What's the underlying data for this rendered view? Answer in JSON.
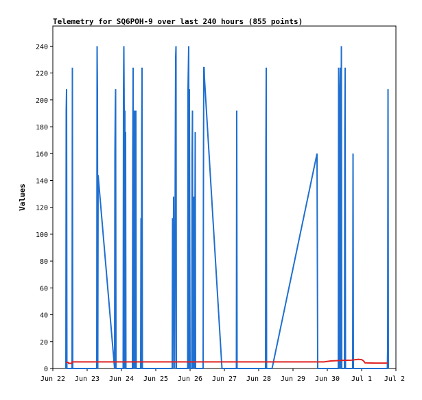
{
  "chart_data": {
    "type": "line",
    "title": "Telemetry for SQ6POH-9 over last 240 hours (855 points)",
    "xlabel": "",
    "ylabel": "Values",
    "x_tick_labels": [
      "Jun 22",
      "Jun 23",
      "Jun 24",
      "Jun 25",
      "Jun 26",
      "Jun 27",
      "Jun 28",
      "Jun 29",
      "Jun 30",
      "Jul 1",
      "Jul 2"
    ],
    "x_range_days": [
      0,
      10
    ],
    "ylim": [
      0,
      255
    ],
    "y_ticks": [
      0,
      20,
      40,
      60,
      80,
      100,
      120,
      140,
      160,
      180,
      200,
      220,
      240
    ],
    "grid": false,
    "colors": {
      "series_blue": "#1f6fd0",
      "series_red": "#e02020",
      "frame": "#000000"
    },
    "series": [
      {
        "color": "#1f6fd0",
        "points": [
          [
            0.38,
            0
          ],
          [
            0.39,
            192
          ],
          [
            0.4,
            208
          ],
          [
            0.41,
            0
          ],
          [
            0.56,
            0
          ],
          [
            0.57,
            224
          ],
          [
            0.58,
            0
          ],
          [
            1.28,
            0
          ],
          [
            1.29,
            240
          ],
          [
            1.3,
            208
          ],
          [
            1.31,
            0
          ],
          [
            1.32,
            144
          ],
          [
            1.8,
            0
          ],
          [
            1.81,
            160
          ],
          [
            1.82,
            192
          ],
          [
            1.83,
            208
          ],
          [
            1.84,
            0
          ],
          [
            2.05,
            0
          ],
          [
            2.06,
            208
          ],
          [
            2.07,
            240
          ],
          [
            2.08,
            192
          ],
          [
            2.09,
            0
          ],
          [
            2.1,
            192
          ],
          [
            2.11,
            0
          ],
          [
            2.12,
            176
          ],
          [
            2.13,
            0
          ],
          [
            2.32,
            0
          ],
          [
            2.33,
            160
          ],
          [
            2.34,
            224
          ],
          [
            2.35,
            0
          ],
          [
            2.37,
            128
          ],
          [
            2.38,
            192
          ],
          [
            2.39,
            0
          ],
          [
            2.42,
            192
          ],
          [
            2.43,
            0
          ],
          [
            2.56,
            0
          ],
          [
            2.57,
            112
          ],
          [
            2.58,
            0
          ],
          [
            2.59,
            176
          ],
          [
            2.6,
            224
          ],
          [
            2.61,
            0
          ],
          [
            3.48,
            0
          ],
          [
            3.49,
            112
          ],
          [
            3.5,
            0
          ],
          [
            3.52,
            128
          ],
          [
            3.53,
            48
          ],
          [
            3.54,
            56
          ],
          [
            3.55,
            0
          ],
          [
            3.57,
            168
          ],
          [
            3.58,
            232
          ],
          [
            3.59,
            240
          ],
          [
            3.6,
            0
          ],
          [
            3.93,
            0
          ],
          [
            3.94,
            208
          ],
          [
            3.95,
            224
          ],
          [
            3.96,
            240
          ],
          [
            3.97,
            0
          ],
          [
            3.98,
            208
          ],
          [
            3.99,
            96
          ],
          [
            4.0,
            0
          ],
          [
            4.05,
            0
          ],
          [
            4.06,
            160
          ],
          [
            4.07,
            192
          ],
          [
            4.08,
            0
          ],
          [
            4.1,
            128
          ],
          [
            4.11,
            0
          ],
          [
            4.12,
            128
          ],
          [
            4.13,
            0
          ],
          [
            4.15,
            176
          ],
          [
            4.16,
            0
          ],
          [
            4.38,
            0
          ],
          [
            4.39,
            144
          ],
          [
            4.4,
            224
          ],
          [
            4.41,
            224
          ],
          [
            4.42,
            216
          ],
          [
            4.93,
            0
          ],
          [
            5.35,
            0
          ],
          [
            5.36,
            192
          ],
          [
            5.37,
            0
          ],
          [
            6.2,
            0
          ],
          [
            6.21,
            160
          ],
          [
            6.22,
            224
          ],
          [
            6.23,
            0
          ],
          [
            6.38,
            0
          ],
          [
            6.39,
            0
          ],
          [
            7.7,
            160
          ],
          [
            7.71,
            80
          ],
          [
            7.72,
            0
          ],
          [
            8.32,
            0
          ],
          [
            8.33,
            224
          ],
          [
            8.34,
            208
          ],
          [
            8.35,
            0
          ],
          [
            8.37,
            72
          ],
          [
            8.38,
            224
          ],
          [
            8.39,
            0
          ],
          [
            8.4,
            96
          ],
          [
            8.41,
            240
          ],
          [
            8.42,
            0
          ],
          [
            8.5,
            0
          ],
          [
            8.51,
            176
          ],
          [
            8.52,
            224
          ],
          [
            8.53,
            0
          ],
          [
            8.74,
            0
          ],
          [
            8.75,
            160
          ],
          [
            8.76,
            0
          ],
          [
            9.75,
            0
          ],
          [
            9.76,
            16
          ],
          [
            9.77,
            208
          ],
          [
            9.78,
            0
          ]
        ]
      },
      {
        "color": "#e02020",
        "points": [
          [
            0.38,
            4.5
          ],
          [
            0.45,
            4.5
          ],
          [
            0.46,
            3.8
          ],
          [
            0.55,
            3.8
          ],
          [
            0.56,
            4.9
          ],
          [
            7.9,
            4.9
          ],
          [
            8.1,
            5.6
          ],
          [
            8.4,
            6.0
          ],
          [
            8.7,
            6.2
          ],
          [
            8.9,
            6.8
          ],
          [
            9.0,
            6.6
          ],
          [
            9.05,
            5.8
          ],
          [
            9.1,
            4.2
          ],
          [
            9.4,
            4.0
          ],
          [
            9.76,
            4.0
          ]
        ]
      }
    ]
  }
}
